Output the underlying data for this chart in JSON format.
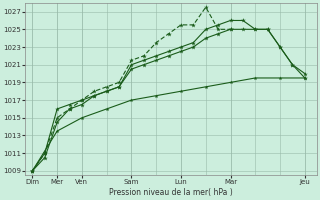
{
  "xlabel": "Pression niveau de la mer( hPa )",
  "background_color": "#cceedd",
  "grid_color": "#99bbaa",
  "line_color": "#1a5c1a",
  "ylim": [
    1008.5,
    1028
  ],
  "yticks": [
    1009,
    1011,
    1013,
    1015,
    1017,
    1019,
    1021,
    1023,
    1025,
    1027
  ],
  "day_tick_positions": [
    0,
    1,
    2,
    4,
    6,
    8,
    11
  ],
  "day_tick_labels": [
    "Dim",
    "Mer",
    "Ven",
    "Sam",
    "Lun",
    "Mar",
    "Jeu"
  ],
  "xlim": [
    -0.3,
    11.5
  ],
  "series1": {
    "x": [
      0,
      0.5,
      1,
      1.5,
      2,
      2.5,
      3,
      3.5,
      4,
      4.5,
      5,
      5.5,
      6,
      6.5,
      7,
      7.5,
      8,
      8.5,
      9,
      9.5,
      10,
      10.5,
      11
    ],
    "y": [
      1009,
      1010.5,
      1014.5,
      1016,
      1016.5,
      1017.5,
      1018,
      1018.5,
      1020.5,
      1021,
      1021.5,
      1022,
      1022.5,
      1023,
      1024,
      1024.5,
      1025,
      1025,
      1025,
      1025,
      1023,
      1021,
      1020
    ]
  },
  "series2": {
    "x": [
      0,
      0.5,
      1,
      1.5,
      2,
      2.5,
      3,
      3.5,
      4,
      4.5,
      5,
      5.5,
      6,
      6.5,
      7,
      7.5,
      8,
      8.5,
      9,
      9.5,
      10,
      10.5,
      11
    ],
    "y": [
      1009,
      1011,
      1016,
      1016.5,
      1017,
      1017.5,
      1018,
      1018.5,
      1021,
      1021.5,
      1022,
      1022.5,
      1023,
      1023.5,
      1025,
      1025.5,
      1026,
      1026,
      1025,
      1025,
      1023,
      1021,
      1019.5
    ]
  },
  "series_dotted": {
    "x": [
      0,
      0.5,
      1,
      1.5,
      2,
      2.5,
      3,
      3.5,
      4,
      4.5,
      5,
      5.5,
      6,
      6.5,
      7,
      7.5,
      8
    ],
    "y": [
      1009,
      1011,
      1015,
      1016,
      1017,
      1018,
      1018.5,
      1019,
      1021.5,
      1022,
      1023.5,
      1024.5,
      1025.5,
      1025.5,
      1027.5,
      1025,
      1025
    ]
  },
  "series_flat": {
    "x": [
      0,
      1,
      2,
      3,
      4,
      5,
      6,
      7,
      8,
      9,
      10,
      11
    ],
    "y": [
      1009,
      1013.5,
      1015,
      1016,
      1017,
      1017.5,
      1018,
      1018.5,
      1019,
      1019.5,
      1019.5,
      1019.5
    ]
  }
}
